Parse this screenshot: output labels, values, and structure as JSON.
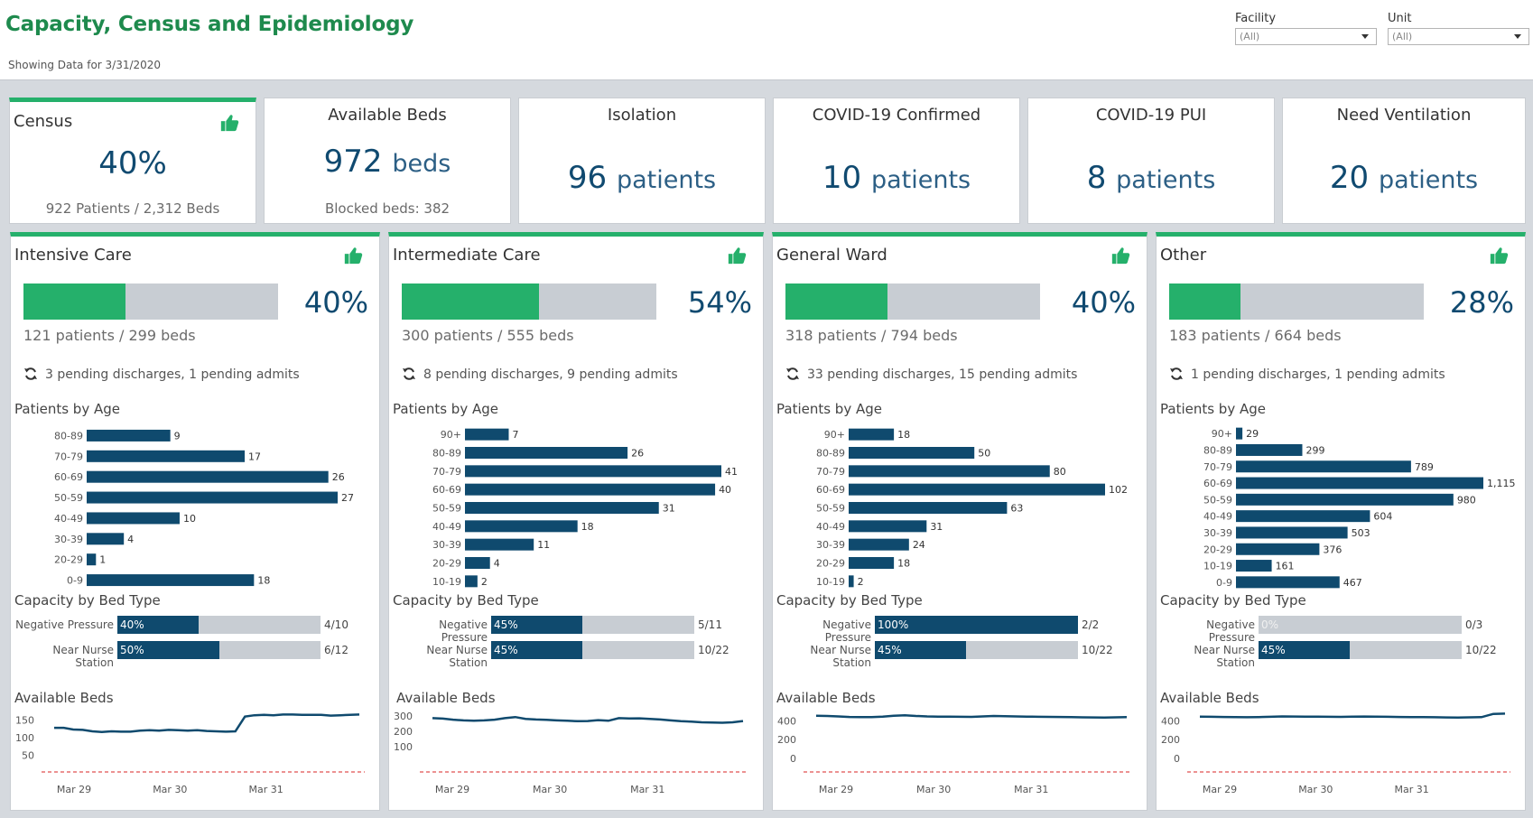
{
  "header": {
    "title": "Capacity, Census and Epidemiology",
    "subtitle": "Showing Data for 3/31/2020",
    "filters": [
      {
        "label": "Facility",
        "value": "(All)"
      },
      {
        "label": "Unit",
        "value": "(All)"
      }
    ]
  },
  "kpis": [
    {
      "title": "Census",
      "big": "40%",
      "unit": "",
      "sub": "922 Patients / 2,312 Beds"
    },
    {
      "title": "Available Beds",
      "big": "972",
      "unit": "beds",
      "sub": "Blocked beds: 382"
    },
    {
      "title": "Isolation",
      "big": "96",
      "unit": "patients",
      "sub": ""
    },
    {
      "title": "COVID-19 Confirmed",
      "big": "10",
      "unit": "patients",
      "sub": ""
    },
    {
      "title": "COVID-19 PUI",
      "big": "8",
      "unit": "patients",
      "sub": ""
    },
    {
      "title": "Need Ventilation",
      "big": "20",
      "unit": "patients",
      "sub": ""
    }
  ],
  "labels": {
    "patients_by_age": "Patients by Age",
    "capacity_by_bed_type": "Capacity by Bed Type",
    "available_beds": "Available Beds",
    "negative_pressure": "Negative Pressure",
    "near_nurse_station": "Near Nurse Station"
  },
  "colors": {
    "accent_green": "#25b06b",
    "navy": "#0f4a6e",
    "track": "#c8cdd3",
    "title_green": "#1e8a4d"
  },
  "units": [
    {
      "name": "Intensive Care",
      "occupancy": 0.4,
      "pct": "40%",
      "count": "121 patients / 299 beds",
      "pending": "3 pending discharges,   1 pending admits",
      "age": {
        "labels": [
          "80-89",
          "70-79",
          "60-69",
          "50-59",
          "40-49",
          "30-39",
          "20-29",
          "0-9"
        ],
        "values": [
          9,
          17,
          26,
          27,
          10,
          4,
          1,
          18
        ],
        "value_labels": [
          "9",
          "17",
          "26",
          "27",
          "10",
          "4",
          "1",
          "18"
        ],
        "max": 27
      },
      "beds": [
        {
          "fill": 0.4,
          "pct": "40%",
          "frac": "4/10"
        },
        {
          "fill": 0.5,
          "pct": "50%",
          "frac": "6/12"
        }
      ],
      "line": {
        "yticks": [
          "150",
          "100",
          "50"
        ],
        "tick_values": [
          150,
          100,
          50
        ],
        "ymin": 30,
        "ymax": 180,
        "xticks": [
          "Mar 29",
          "Mar 30",
          "Mar 31"
        ],
        "points": [
          128,
          128,
          123,
          122,
          118,
          116,
          118,
          117,
          117,
          120,
          121,
          120,
          122,
          121,
          120,
          121,
          119,
          118,
          117,
          118,
          160,
          164,
          165,
          164,
          166,
          166,
          165,
          165,
          165,
          163,
          164,
          165,
          166
        ]
      }
    },
    {
      "name": "Intermediate Care",
      "occupancy": 0.54,
      "pct": "54%",
      "count": "300 patients / 555 beds",
      "pending": "8 pending discharges,   9 pending admits",
      "age": {
        "labels": [
          "90+",
          "80-89",
          "70-79",
          "60-69",
          "50-59",
          "40-49",
          "30-39",
          "20-29",
          "10-19"
        ],
        "values": [
          7,
          26,
          41,
          40,
          31,
          18,
          11,
          4,
          2
        ],
        "value_labels": [
          "7",
          "26",
          "41",
          "40",
          "31",
          "18",
          "11",
          "4",
          "2"
        ],
        "max": 41
      },
      "beds": [
        {
          "fill": 0.45,
          "pct": "45%",
          "frac": "5/11"
        },
        {
          "fill": 0.45,
          "pct": "45%",
          "frac": "10/22"
        }
      ],
      "line": {
        "yticks": [
          "300",
          "200",
          "100"
        ],
        "tick_values": [
          300,
          200,
          100
        ],
        "ymin": 0,
        "ymax": 340,
        "xticks": [
          "Mar 29",
          "Mar 30",
          "Mar 31"
        ],
        "points": [
          285,
          282,
          275,
          270,
          268,
          270,
          275,
          285,
          292,
          280,
          276,
          274,
          270,
          268,
          265,
          266,
          272,
          268,
          285,
          283,
          284,
          280,
          276,
          270,
          265,
          262,
          258,
          256,
          255,
          258,
          266
        ]
      }
    },
    {
      "name": "General Ward",
      "occupancy": 0.4,
      "pct": "40%",
      "count": "318 patients / 794 beds",
      "pending": "33 pending discharges,   15 pending admits",
      "age": {
        "labels": [
          "90+",
          "80-89",
          "70-79",
          "60-69",
          "50-59",
          "40-49",
          "30-39",
          "20-29",
          "10-19"
        ],
        "values": [
          18,
          50,
          80,
          102,
          63,
          31,
          24,
          18,
          2
        ],
        "value_labels": [
          "18",
          "50",
          "80",
          "102",
          "63",
          "31",
          "24",
          "18",
          "2"
        ],
        "max": 102
      },
      "beds": [
        {
          "fill": 1.0,
          "pct": "100%",
          "frac": "2/2"
        },
        {
          "fill": 0.45,
          "pct": "45%",
          "frac": "10/22"
        }
      ],
      "line": {
        "yticks": [
          "400",
          "200",
          "0"
        ],
        "tick_values": [
          400,
          200,
          0
        ],
        "ymin": -40,
        "ymax": 520,
        "xticks": [
          "Mar 29",
          "Mar 30",
          "Mar 31"
        ],
        "points": [
          455,
          452,
          448,
          442,
          440,
          441,
          445,
          455,
          460,
          452,
          448,
          446,
          445,
          444,
          443,
          448,
          452,
          450,
          448,
          446,
          444,
          443,
          442,
          440,
          438,
          437,
          436,
          438,
          440
        ]
      }
    },
    {
      "name": "Other",
      "occupancy": 0.28,
      "pct": "28%",
      "count": "183 patients / 664 beds",
      "pending": "1 pending discharges,   1 pending admits",
      "age": {
        "labels": [
          "90+",
          "80-89",
          "70-79",
          "60-69",
          "50-59",
          "40-49",
          "30-39",
          "20-29",
          "10-19",
          "0-9"
        ],
        "values": [
          29,
          299,
          789,
          1115,
          980,
          604,
          503,
          376,
          161,
          467
        ],
        "value_labels": [
          "29",
          "299",
          "789",
          "1,115",
          "980",
          "604",
          "503",
          "376",
          "161",
          "467"
        ],
        "max": 1115
      },
      "beds": [
        {
          "fill": 0.0,
          "pct": "0%",
          "frac": "0/3"
        },
        {
          "fill": 0.45,
          "pct": "45%",
          "frac": "10/22"
        }
      ],
      "line": {
        "yticks": [
          "400",
          "200",
          "0"
        ],
        "tick_values": [
          400,
          200,
          0
        ],
        "ymin": -40,
        "ymax": 520,
        "xticks": [
          "Mar 29",
          "Mar 30",
          "Mar 31"
        ],
        "points": [
          445,
          444,
          442,
          440,
          439,
          441,
          444,
          448,
          447,
          446,
          445,
          444,
          443,
          445,
          447,
          446,
          444,
          442,
          441,
          440,
          439,
          437,
          436,
          438,
          440,
          475,
          478
        ]
      }
    }
  ]
}
